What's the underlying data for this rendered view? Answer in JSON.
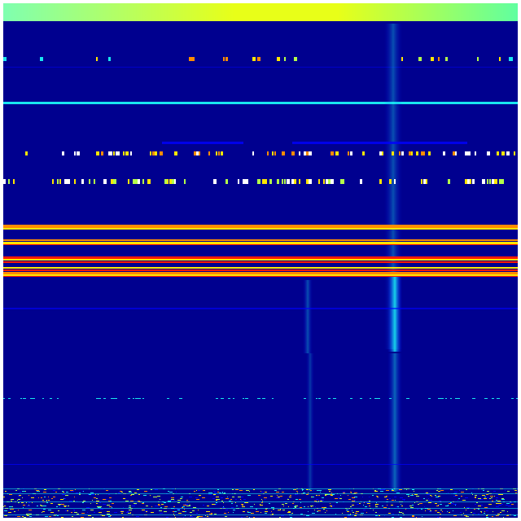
{
  "image": {
    "kind": "heatmap-like intensity image",
    "colormap": "jet",
    "colors": {
      "background": "#00008f",
      "low": "#0000ff",
      "cyan": "#19e6f0",
      "green_yellow": "#b4ff4a",
      "yellow": "#ffe600",
      "orange": "#ff8c00",
      "red": "#ff1a00",
      "top_band_left": "#7fffb0",
      "top_band_mid": "#e8ff18",
      "top_band_right": "#60ffa0"
    }
  }
}
